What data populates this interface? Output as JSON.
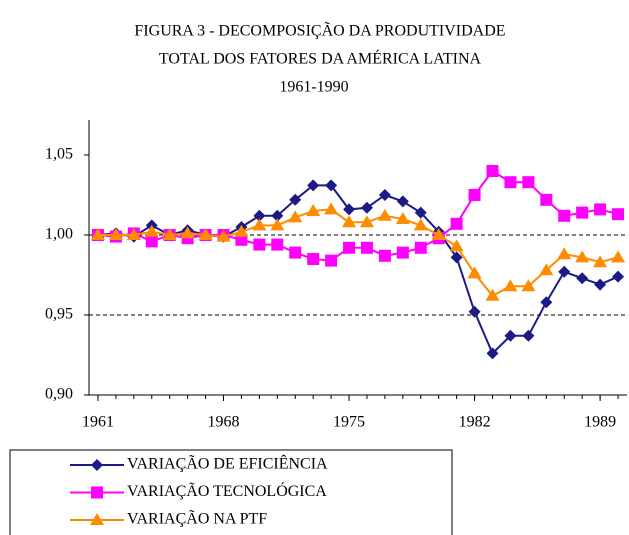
{
  "chart_data": {
    "type": "line",
    "title": [
      "FIGURA 3 -  DECOMPOSIÇÃO DA PRODUTIVIDADE",
      "TOTAL DOS FATORES DA AMÉRICA LATINA",
      "1961-1990"
    ],
    "x": [
      1961,
      1962,
      1963,
      1964,
      1965,
      1966,
      1967,
      1968,
      1969,
      1970,
      1971,
      1972,
      1973,
      1974,
      1975,
      1976,
      1977,
      1978,
      1979,
      1980,
      1981,
      1982,
      1983,
      1984,
      1985,
      1986,
      1987,
      1988,
      1989,
      1990
    ],
    "xlim": [
      1960.5,
      1990.5
    ],
    "xticks": [
      1961,
      1968,
      1975,
      1982,
      1989
    ],
    "ylim": [
      0.9,
      1.05
    ],
    "yticks": [
      {
        "value": 0.9,
        "label": "0,90"
      },
      {
        "value": 0.95,
        "label": "0,95"
      },
      {
        "value": 1.0,
        "label": "1,00"
      },
      {
        "value": 1.05,
        "label": "1,05"
      }
    ],
    "grid": true,
    "legend": "bottom-left",
    "series": [
      {
        "name": "VARIAÇÃO DE EFICIÊNCIA",
        "color": "#1c1a84",
        "marker": "diamond",
        "values": [
          1.0,
          1.001,
          0.999,
          1.006,
          1.0,
          1.003,
          1.0,
          0.999,
          1.005,
          1.012,
          1.012,
          1.022,
          1.031,
          1.031,
          1.016,
          1.017,
          1.025,
          1.021,
          1.014,
          1.002,
          0.986,
          0.952,
          0.926,
          0.937,
          0.937,
          0.958,
          0.977,
          0.973,
          0.969,
          0.974
        ]
      },
      {
        "name": "VARIAÇÃO TECNOLÓGICA",
        "color": "#ff00ff",
        "marker": "square",
        "values": [
          1.0,
          0.999,
          1.001,
          0.996,
          1.0,
          0.998,
          1.0,
          1.0,
          0.997,
          0.994,
          0.994,
          0.989,
          0.985,
          0.984,
          0.992,
          0.992,
          0.987,
          0.989,
          0.992,
          0.998,
          1.007,
          1.025,
          1.04,
          1.033,
          1.033,
          1.022,
          1.012,
          1.014,
          1.016,
          1.013
        ]
      },
      {
        "name": "VARIAÇÃO NA PTF",
        "color": "#ff8c00",
        "marker": "triangle",
        "values": [
          1.0,
          1.0,
          1.0,
          1.002,
          1.0,
          1.001,
          1.0,
          0.999,
          1.002,
          1.006,
          1.006,
          1.011,
          1.015,
          1.016,
          1.008,
          1.008,
          1.012,
          1.01,
          1.006,
          1.0,
          0.993,
          0.976,
          0.962,
          0.968,
          0.968,
          0.978,
          0.988,
          0.986,
          0.983,
          0.986
        ]
      }
    ]
  }
}
